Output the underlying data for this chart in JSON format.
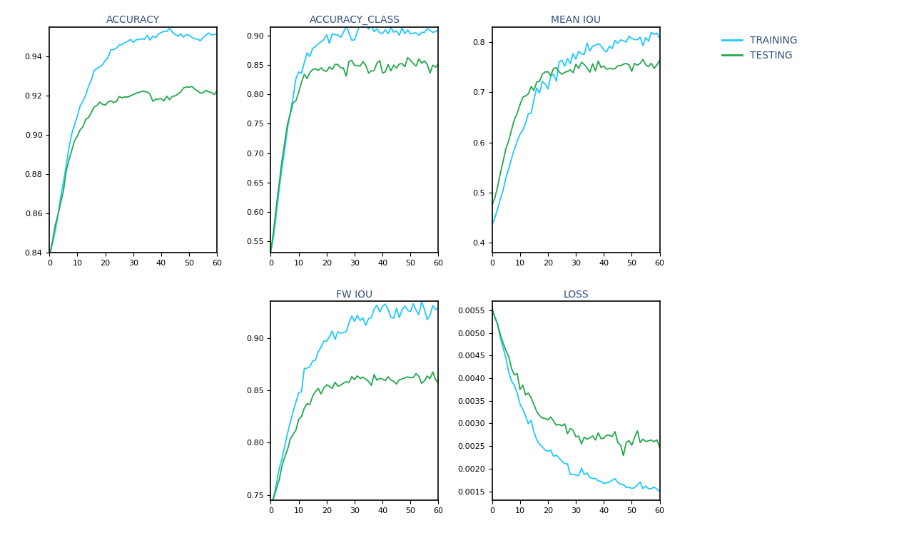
{
  "n_rounds": 60,
  "train_color": "#1EC8FF",
  "test_color": "#22A84A",
  "legend_labels": [
    "TRAINING",
    "TESTING"
  ],
  "subplot_titles": [
    "ACCURACY",
    "ACCURACY_CLASS",
    "MEAN IOU",
    "FW IOU",
    "LOSS"
  ],
  "figsize": [
    12.6,
    7.54
  ],
  "dpi": 100,
  "acc_ylim": [
    0.84,
    0.955
  ],
  "acc_class_ylim": [
    0.53,
    0.915
  ],
  "mean_iou_ylim": [
    0.38,
    0.83
  ],
  "fw_iou_ylim": [
    0.745,
    0.935
  ],
  "loss_ylim": [
    0.0013,
    0.0057
  ]
}
